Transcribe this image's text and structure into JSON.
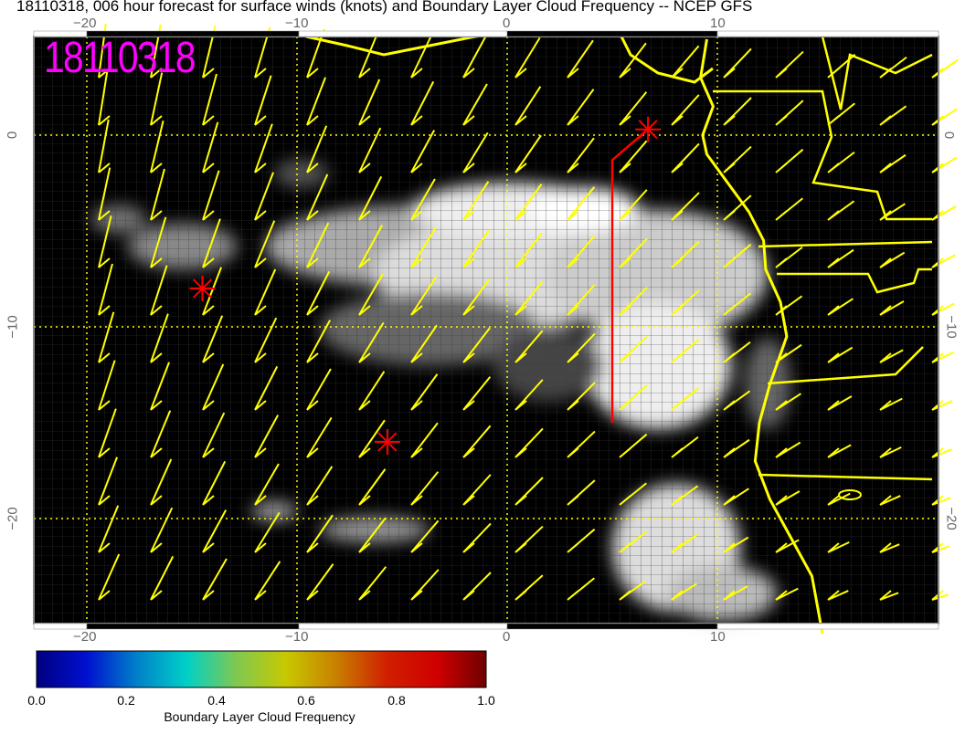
{
  "title": "18110318, 006 hour forecast for surface winds (knots) and Boundary Layer Cloud Frequency -- NCEP GFS",
  "stamp": "18110318",
  "lon_ticks": [
    "−20",
    "−10",
    "0",
    "10"
  ],
  "lat_ticks": [
    "0",
    "−10",
    "−20"
  ],
  "colorbar": {
    "ticks": [
      "0.0",
      "0.2",
      "0.4",
      "0.6",
      "0.8",
      "1.0"
    ],
    "label": "Boundary Layer Cloud Frequency",
    "colors": [
      "#00007f",
      "#0010d0",
      "#0080c8",
      "#00d0c8",
      "#80c850",
      "#c8c800",
      "#c88000",
      "#d02000",
      "#d00000",
      "#700000"
    ]
  },
  "colors": {
    "barb": "#ffff00",
    "coast": "#ffff00",
    "marker": "#ff0000",
    "stamp": "#ff00ff",
    "background": "#000000"
  },
  "markers": [
    {
      "lon": -14.5,
      "lat": -8.0
    },
    {
      "lon": -5.7,
      "lat": -16.0
    },
    {
      "lon": 6.7,
      "lat": 0.3
    }
  ],
  "track": [
    [
      6.7,
      0.3
    ],
    [
      5.0,
      -1.3
    ],
    [
      5.0,
      -15.0
    ]
  ]
}
